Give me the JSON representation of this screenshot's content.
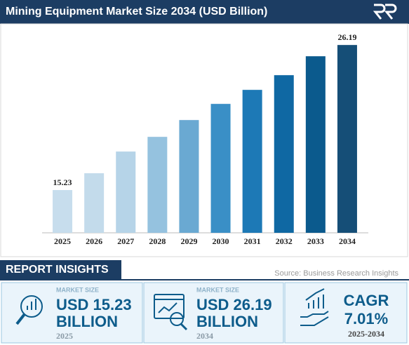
{
  "chart_data": {
    "type": "bar",
    "title": "Mining Equipment Market Size 2034 (USD Billion)",
    "categories": [
      "2025",
      "2026",
      "2027",
      "2028",
      "2029",
      "2030",
      "2031",
      "2032",
      "2033",
      "2034"
    ],
    "values": [
      15.23,
      16.5,
      18.14,
      19.25,
      20.52,
      21.74,
      22.8,
      23.91,
      25.34,
      26.19
    ],
    "value_labels": [
      "15.23",
      null,
      null,
      null,
      null,
      null,
      null,
      null,
      null,
      "26.19"
    ],
    "colors": [
      "#c7dded",
      "#c3dbeb",
      "#b6d4e8",
      "#95c2df",
      "#6aa9d2",
      "#3a8fc6",
      "#1d79b6",
      "#0f68a3",
      "#0b5a8d",
      "#154e77"
    ],
    "ylim": [
      12,
      28
    ]
  },
  "report_insights": {
    "heading": "REPORT INSIGHTS",
    "source": "Source: Business Research Insights",
    "cards": [
      {
        "caption": "MARKET SIZE",
        "value": "USD 15.23",
        "unit": "BILLION",
        "year": "2025"
      },
      {
        "caption": "MARKET SIZE",
        "value": "USD 26.19",
        "unit": "BILLION",
        "year": "2034"
      },
      {
        "caption": "CAGR",
        "value": "7.01%",
        "period": "2025-2034"
      }
    ]
  }
}
